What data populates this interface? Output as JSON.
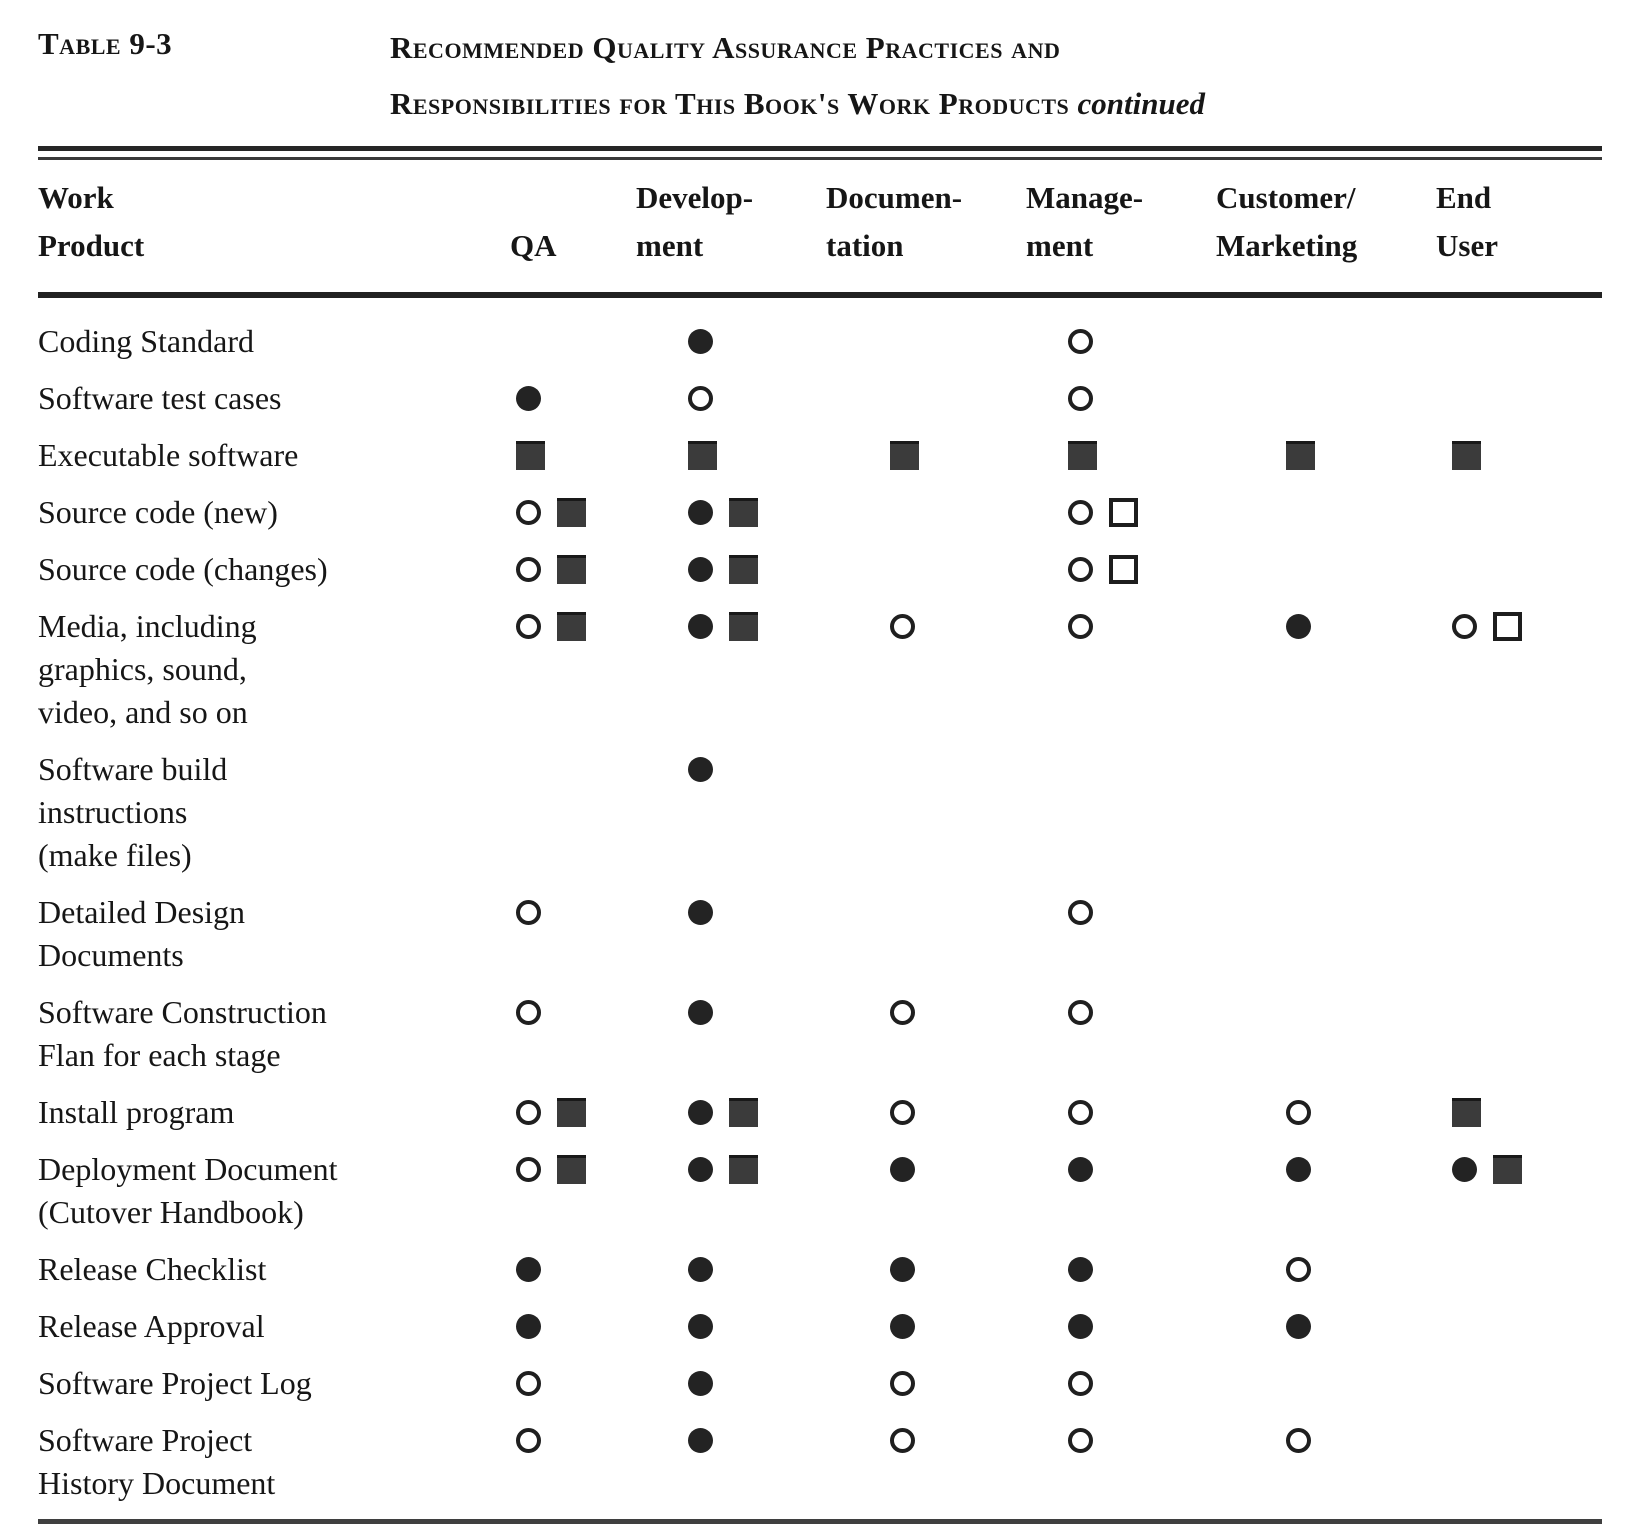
{
  "page": {
    "label": "Table 9-3",
    "title_line1": "Recommended Quality Assurance Practices and",
    "title_line2": "Responsibilities for This Book's Work Products",
    "continued": "continued"
  },
  "colors": {
    "paper": "#ffffff",
    "ink": "#161616",
    "symbol_gray": "#3b3b3b"
  },
  "symbols": {
    "filled-circle": "●",
    "open-circle": "○",
    "filled-square": "■",
    "open-square": "□"
  },
  "table": {
    "headers": [
      {
        "id": "work-product",
        "lines": [
          "Work",
          "Product"
        ]
      },
      {
        "id": "qa",
        "lines": [
          "QA"
        ]
      },
      {
        "id": "development",
        "lines": [
          "Develop-",
          "ment"
        ]
      },
      {
        "id": "documentation",
        "lines": [
          "Documen-",
          "tation"
        ]
      },
      {
        "id": "management",
        "lines": [
          "Manage-",
          "ment"
        ]
      },
      {
        "id": "customer-marketing",
        "lines": [
          "Customer/",
          "Marketing"
        ]
      },
      {
        "id": "end-user",
        "lines": [
          "End",
          "User"
        ]
      }
    ],
    "rows": [
      {
        "product_lines": [
          "Coding Standard"
        ],
        "cells": [
          [],
          [
            "filled-circle"
          ],
          [],
          [
            "open-circle"
          ],
          [],
          []
        ]
      },
      {
        "product_lines": [
          "Software test cases"
        ],
        "cells": [
          [
            "filled-circle"
          ],
          [
            "open-circle"
          ],
          [],
          [
            "open-circle"
          ],
          [],
          []
        ]
      },
      {
        "product_lines": [
          "Executable software"
        ],
        "cells": [
          [
            "filled-square"
          ],
          [
            "filled-square"
          ],
          [
            "filled-square"
          ],
          [
            "filled-square"
          ],
          [
            "filled-square"
          ],
          [
            "filled-square"
          ]
        ]
      },
      {
        "product_lines": [
          "Source code (new)"
        ],
        "cells": [
          [
            "open-circle",
            "filled-square"
          ],
          [
            "filled-circle",
            "filled-square"
          ],
          [],
          [
            "open-circle",
            "open-square"
          ],
          [],
          []
        ]
      },
      {
        "product_lines": [
          "Source code (changes)"
        ],
        "cells": [
          [
            "open-circle",
            "filled-square"
          ],
          [
            "filled-circle",
            "filled-square"
          ],
          [],
          [
            "open-circle",
            "open-square"
          ],
          [],
          []
        ]
      },
      {
        "product_lines": [
          "Media, including",
          "graphics, sound,",
          "video, and so on"
        ],
        "cells": [
          [
            "open-circle",
            "filled-square"
          ],
          [
            "filled-circle",
            "filled-square"
          ],
          [
            "open-circle"
          ],
          [
            "open-circle"
          ],
          [
            "filled-circle"
          ],
          [
            "open-circle",
            "open-square"
          ]
        ]
      },
      {
        "product_lines": [
          "Software  build",
          "instructions",
          "(make files)"
        ],
        "cells": [
          [],
          [
            "filled-circle"
          ],
          [],
          [],
          [],
          []
        ]
      },
      {
        "product_lines": [
          "Detailed Design",
          "Documents"
        ],
        "cells": [
          [
            "open-circle"
          ],
          [
            "filled-circle"
          ],
          [],
          [
            "open-circle"
          ],
          [],
          []
        ]
      },
      {
        "product_lines": [
          "Software  Construction",
          "Flan for each stage"
        ],
        "cells": [
          [
            "open-circle"
          ],
          [
            "filled-circle"
          ],
          [
            "open-circle"
          ],
          [
            "open-circle"
          ],
          [],
          []
        ]
      },
      {
        "product_lines": [
          "Install program"
        ],
        "cells": [
          [
            "open-circle",
            "filled-square"
          ],
          [
            "filled-circle",
            "filled-square"
          ],
          [
            "open-circle"
          ],
          [
            "open-circle"
          ],
          [
            "open-circle"
          ],
          [
            "filled-square"
          ]
        ]
      },
      {
        "product_lines": [
          "Deployment Document",
          "(Cutover  Handbook)"
        ],
        "cells": [
          [
            "open-circle",
            "filled-square"
          ],
          [
            "filled-circle",
            "filled-square"
          ],
          [
            "filled-circle"
          ],
          [
            "filled-circle"
          ],
          [
            "filled-circle"
          ],
          [
            "filled-circle",
            "filled-square"
          ]
        ]
      },
      {
        "product_lines": [
          "Release  Checklist"
        ],
        "cells": [
          [
            "filled-circle"
          ],
          [
            "filled-circle"
          ],
          [
            "filled-circle"
          ],
          [
            "filled-circle"
          ],
          [
            "open-circle"
          ],
          []
        ]
      },
      {
        "product_lines": [
          "Release  Approval"
        ],
        "cells": [
          [
            "filled-circle"
          ],
          [
            "filled-circle"
          ],
          [
            "filled-circle"
          ],
          [
            "filled-circle"
          ],
          [
            "filled-circle"
          ],
          []
        ]
      },
      {
        "product_lines": [
          "Software Project Log"
        ],
        "cells": [
          [
            "open-circle"
          ],
          [
            "filled-circle"
          ],
          [
            "open-circle"
          ],
          [
            "open-circle"
          ],
          [],
          []
        ]
      },
      {
        "product_lines": [
          "Software Project",
          "History Document"
        ],
        "cells": [
          [
            "open-circle"
          ],
          [
            "filled-circle"
          ],
          [
            "open-circle"
          ],
          [
            "open-circle"
          ],
          [
            "open-circle"
          ],
          []
        ]
      }
    ]
  }
}
